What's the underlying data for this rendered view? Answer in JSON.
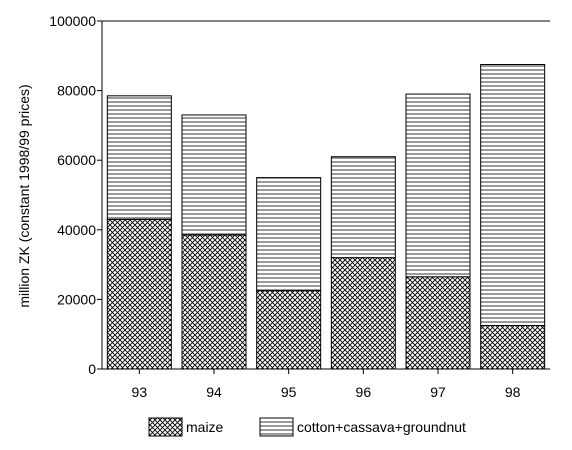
{
  "chart_data": {
    "type": "bar",
    "stacked": true,
    "title": "",
    "xlabel": "",
    "ylabel": "million ZK (constant 1998/99 prices)",
    "categories": [
      "93",
      "94",
      "95",
      "96",
      "97",
      "98"
    ],
    "ylim": [
      0,
      100000
    ],
    "yticks": [
      0,
      20000,
      40000,
      60000,
      80000,
      100000
    ],
    "ytick_labels": [
      "0",
      "20000",
      "40000",
      "60000",
      "80000",
      "100000"
    ],
    "grid": false,
    "legend_position": "bottom",
    "series": [
      {
        "name": "maize",
        "pattern": "crosshatch",
        "values": [
          43000,
          38500,
          22500,
          32000,
          26500,
          12500
        ]
      },
      {
        "name": "cotton+cassava+groundnut",
        "pattern": "horizontal-lines",
        "values": [
          35500,
          34500,
          32500,
          29000,
          52500,
          75000
        ]
      }
    ],
    "colors": {
      "stroke": "#000000",
      "background": "#ffffff"
    }
  }
}
